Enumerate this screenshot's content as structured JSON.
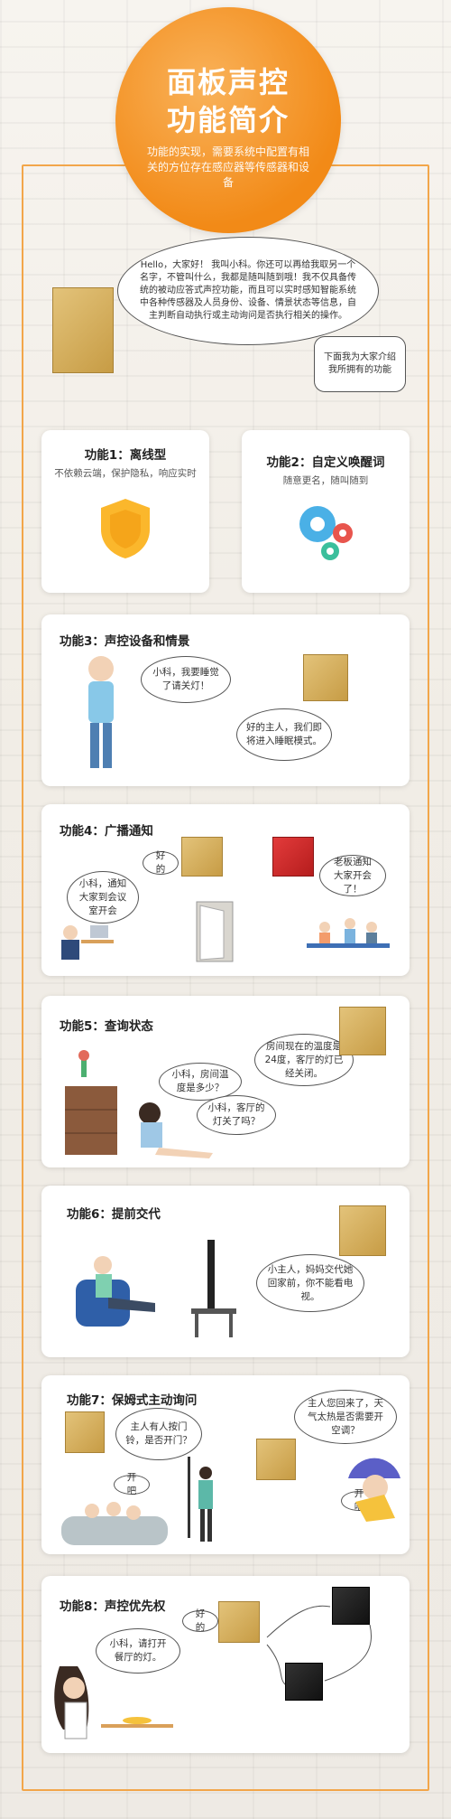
{
  "hero": {
    "title_line1": "面板声控",
    "title_line2": "功能简介",
    "subtitle": "功能的实现，需要系统中配置有相关的方位存在感应器等传感器和设备"
  },
  "intro": {
    "greeting": "Hello，大家好！  我叫小科。你还可以再给我取另一个名字，不管叫什么，我都是随叫随到哦！我不仅具备传统的被动应答式声控功能，而且可以实时感知智能系统中各种传感器及人员身份、设备、情景状态等信息，自主判断自动执行或主动询问是否执行相关的操作。",
    "next": "下面我为大家介绍我所拥有的功能"
  },
  "features": [
    {
      "title": "功能1：离线型",
      "desc": "不依赖云端，保护隐私，响应实时"
    },
    {
      "title": "功能2：自定义唤醒词",
      "desc": "随意更名，随叫随到"
    },
    {
      "title": "功能3：声控设备和情景",
      "b1": "小科，我要睡觉了请关灯！",
      "b2": "好的主人，我们即将进入睡眠模式。"
    },
    {
      "title": "功能4：广播通知",
      "b1": "好的",
      "b2": "小科，通知大家到会议室开会",
      "b3": "老板通知大家开会了！"
    },
    {
      "title": "功能5：查询状态",
      "b1": "房间现在的温度是24度，客厅的灯已经关闭。",
      "b2": "小科，房间温度是多少？",
      "b3": "小科，客厅的灯关了吗？"
    },
    {
      "title": "功能6：提前交代",
      "b1": "小主人，妈妈交代她回家前，你不能看电视。"
    },
    {
      "title": "功能7：保姆式主动询问",
      "b1": "主人有人按门铃，是否开门？",
      "b2": "开吧",
      "b3": "主人您回来了，天气太热是否需要开空调？",
      "b4": "开吧"
    },
    {
      "title": "功能8：声控优先权",
      "b1": "好的",
      "b2": "小科，请打开餐厅的灯。"
    }
  ],
  "colors": {
    "accent": "#f28a17",
    "frame": "#f2a64a"
  }
}
